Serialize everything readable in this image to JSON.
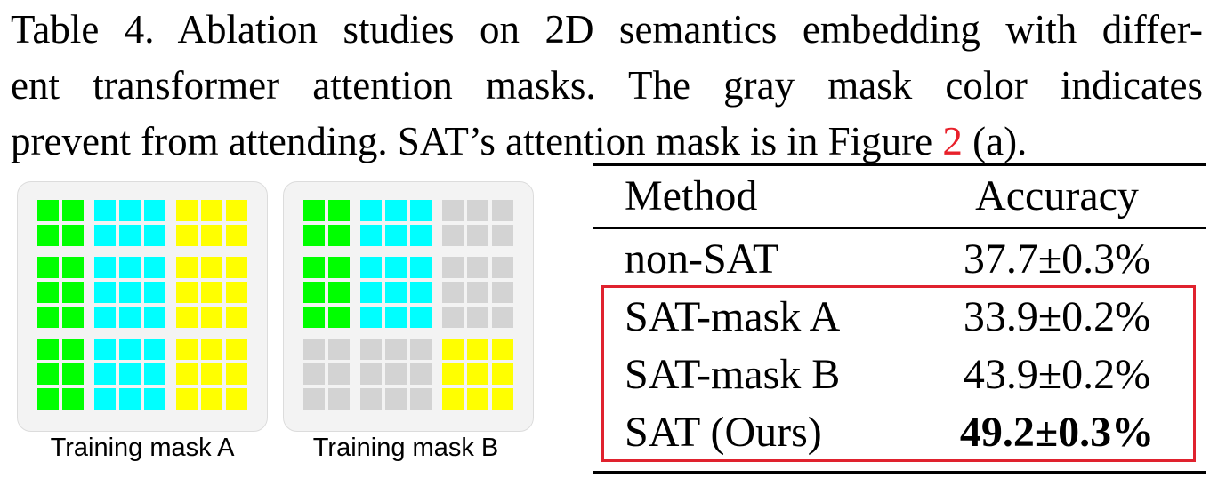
{
  "caption": {
    "line1": "Table 4. Ablation studies on 2D semantics embedding with differ-",
    "line2": "ent transformer attention masks.  The gray mask color indicates",
    "line3_before": "prevent from attending. SAT’s attention mask is in Figure ",
    "line3_ref": "2",
    "line3_after": " (a)."
  },
  "masks": {
    "a_label": "Training mask A",
    "b_label": "Training mask B",
    "colors": {
      "green": "#00ff00",
      "cyan": "#00ffff",
      "yellow": "#ffff00",
      "gray": "#d3d3d3"
    },
    "mask_a": [
      [
        "green",
        "cyan",
        "yellow"
      ],
      [
        "green",
        "cyan",
        "yellow"
      ],
      [
        "green",
        "cyan",
        "yellow"
      ]
    ],
    "mask_b": [
      [
        "green",
        "cyan",
        "gray"
      ],
      [
        "green",
        "cyan",
        "gray"
      ],
      [
        "gray",
        "gray",
        "yellow"
      ]
    ]
  },
  "table": {
    "headers": {
      "method": "Method",
      "accuracy": "Accuracy"
    },
    "rows": [
      {
        "method": "non-SAT",
        "accuracy": "37.7±0.3%"
      },
      {
        "method": "SAT-mask A",
        "accuracy": "33.9±0.2%"
      },
      {
        "method": "SAT-mask B",
        "accuracy": "43.9±0.2%"
      },
      {
        "method": "SAT (Ours)",
        "accuracy": "49.2±0.3%"
      }
    ],
    "highlight_color": "#e0222e"
  }
}
